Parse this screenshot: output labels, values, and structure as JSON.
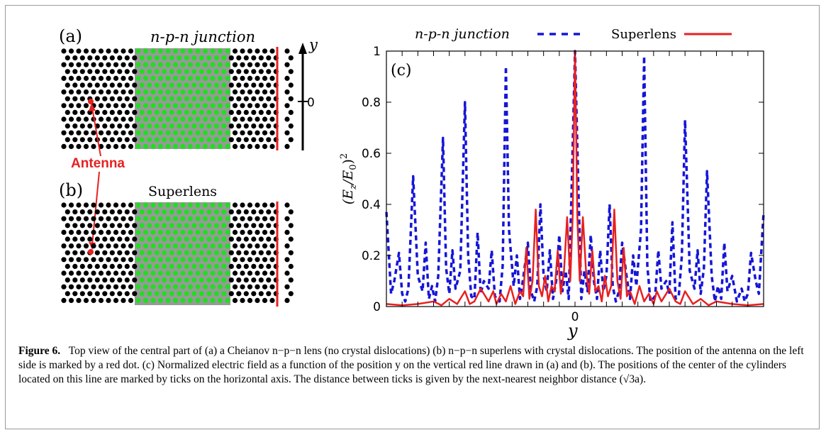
{
  "figure": {
    "panel_a": {
      "label": "(a)",
      "title": "n-p-n junction",
      "axis_var": "y",
      "tick_zero": "0"
    },
    "panel_b": {
      "label": "(b)",
      "title": "Superlens"
    },
    "antenna_label": "Antenna",
    "colors": {
      "black_rod": "#000000",
      "green_rod": "#22dd22",
      "gray_region": "#999999",
      "red": "#e82020",
      "blue": "#1515d8",
      "frame": "#999999"
    }
  },
  "chart_data": {
    "type": "line",
    "panel_label": "(c)",
    "xlabel": "y",
    "ylabel": "(E_z/E_0)^2",
    "ylim": [
      0,
      1
    ],
    "xlim": [
      -12,
      12
    ],
    "y_ticks": [
      "0",
      "0.2",
      "0.4",
      "0.6",
      "0.8",
      "1"
    ],
    "x_tick_labels": [
      {
        "x": 0,
        "label": "0"
      }
    ],
    "x_minor_ticks": [
      -11,
      -10,
      -9,
      -8,
      -7,
      -6,
      -5,
      -4,
      -3,
      -2,
      -1,
      0,
      1,
      2,
      3,
      4,
      5,
      6,
      7,
      8,
      9,
      10,
      11
    ],
    "grid": false,
    "legend_position": "top",
    "series": [
      {
        "name": "n-p-n junction",
        "color": "#1515d8",
        "style": "dashed",
        "x": [
          -12,
          -11.7,
          -11.5,
          -11.2,
          -11,
          -10.8,
          -10.6,
          -10.3,
          -10,
          -9.7,
          -9.5,
          -9.3,
          -9.1,
          -8.9,
          -8.7,
          -8.4,
          -8.2,
          -8,
          -7.8,
          -7.6,
          -7.3,
          -7,
          -6.8,
          -6.6,
          -6.4,
          -6.2,
          -6,
          -5.8,
          -5.5,
          -5.3,
          -5.1,
          -4.8,
          -4.6,
          -4.4,
          -4.2,
          -3.9,
          -3.7,
          -3.5,
          -3.3,
          -3,
          -2.8,
          -2.6,
          -2.4,
          -2.2,
          -2,
          -1.8,
          -1.6,
          -1.4,
          -1.2,
          -1,
          -0.8,
          -0.6,
          -0.4,
          -0.2,
          0,
          0.2,
          0.4,
          0.6,
          0.8,
          1,
          1.2,
          1.4,
          1.6,
          1.8,
          2,
          2.2,
          2.4,
          2.6,
          2.8,
          3,
          3.3,
          3.5,
          3.7,
          3.9,
          4.2,
          4.4,
          4.6,
          4.8,
          5.1,
          5.3,
          5.5,
          5.8,
          6,
          6.2,
          6.4,
          6.6,
          6.8,
          7,
          7.3,
          7.6,
          7.8,
          8,
          8.2,
          8.4,
          8.7,
          8.9,
          9.1,
          9.3,
          9.5,
          9.7,
          10,
          10.3,
          10.6,
          10.8,
          11,
          11.2,
          11.5,
          11.7,
          12
        ],
        "y": [
          0.37,
          0.05,
          0.1,
          0.21,
          0.05,
          0.02,
          0.07,
          0.51,
          0.12,
          0.06,
          0.25,
          0.03,
          0.08,
          0.02,
          0.12,
          0.66,
          0.15,
          0.05,
          0.22,
          0.07,
          0.14,
          0.8,
          0.2,
          0.04,
          0.03,
          0.29,
          0.05,
          0.1,
          0.07,
          0.22,
          0.04,
          0.02,
          0.16,
          0.94,
          0.3,
          0.08,
          0.2,
          0.03,
          0.11,
          0.25,
          0.06,
          0.02,
          0.08,
          0.4,
          0.12,
          0.06,
          0.22,
          0.03,
          0.1,
          0.28,
          0.06,
          0.14,
          0.03,
          0.5,
          1.0,
          0.5,
          0.03,
          0.14,
          0.06,
          0.28,
          0.1,
          0.03,
          0.22,
          0.06,
          0.12,
          0.4,
          0.08,
          0.02,
          0.06,
          0.25,
          0.11,
          0.03,
          0.2,
          0.08,
          0.3,
          0.98,
          0.16,
          0.02,
          0.04,
          0.22,
          0.07,
          0.1,
          0.05,
          0.33,
          0.03,
          0.04,
          0.2,
          0.73,
          0.14,
          0.07,
          0.22,
          0.05,
          0.15,
          0.53,
          0.12,
          0.02,
          0.08,
          0.03,
          0.25,
          0.06,
          0.12,
          0.02,
          0.07,
          0.02,
          0.05,
          0.21,
          0.1,
          0.05,
          0.37
        ]
      },
      {
        "name": "Superlens",
        "color": "#e82020",
        "style": "solid",
        "x": [
          -12,
          -11,
          -10,
          -9,
          -8.5,
          -8,
          -7.5,
          -7,
          -6.7,
          -6.4,
          -6,
          -5.5,
          -5.2,
          -5,
          -4.7,
          -4.4,
          -4.1,
          -3.8,
          -3.5,
          -3.3,
          -3.1,
          -2.9,
          -2.7,
          -2.5,
          -2.3,
          -2.1,
          -1.9,
          -1.7,
          -1.5,
          -1.3,
          -1.1,
          -0.9,
          -0.7,
          -0.5,
          -0.3,
          -0.15,
          0,
          0.15,
          0.3,
          0.5,
          0.7,
          0.9,
          1.1,
          1.3,
          1.5,
          1.7,
          1.9,
          2.1,
          2.3,
          2.5,
          2.7,
          2.9,
          3.1,
          3.3,
          3.5,
          3.8,
          4.1,
          4.4,
          4.7,
          5,
          5.2,
          5.5,
          6,
          6.4,
          6.7,
          7,
          7.5,
          8,
          8.5,
          9,
          10,
          11,
          12
        ],
        "y": [
          0.01,
          0.005,
          0.01,
          0.02,
          0.005,
          0.03,
          0.01,
          0.06,
          0.01,
          0.02,
          0.07,
          0.02,
          0.06,
          0.01,
          0.05,
          0.02,
          0.08,
          0.01,
          0.06,
          0.04,
          0.23,
          0.03,
          0.1,
          0.38,
          0.08,
          0.04,
          0.12,
          0.02,
          0.08,
          0.06,
          0.22,
          0.05,
          0.14,
          0.35,
          0.1,
          0.35,
          1.0,
          0.35,
          0.1,
          0.35,
          0.14,
          0.05,
          0.22,
          0.06,
          0.08,
          0.02,
          0.12,
          0.04,
          0.08,
          0.38,
          0.1,
          0.03,
          0.23,
          0.04,
          0.06,
          0.01,
          0.08,
          0.02,
          0.05,
          0.01,
          0.06,
          0.02,
          0.07,
          0.02,
          0.01,
          0.06,
          0.01,
          0.03,
          0.005,
          0.02,
          0.01,
          0.005,
          0.01
        ]
      }
    ]
  },
  "caption": {
    "label": "Figure 6.",
    "text": "Top view of the central part of (a) a Cheianov n−p−n lens (no crystal dislocations) (b) n−p−n superlens with crystal dislocations. The position of the antenna on the left side is marked by a red dot. (c) Normalized electric field as a function of the position y on the vertical red line drawn in (a) and (b). The positions of the center of the cylinders located on this line are marked by ticks on the horizontal axis. The distance between ticks is given by the next-nearest neighbor distance (√3a)."
  }
}
